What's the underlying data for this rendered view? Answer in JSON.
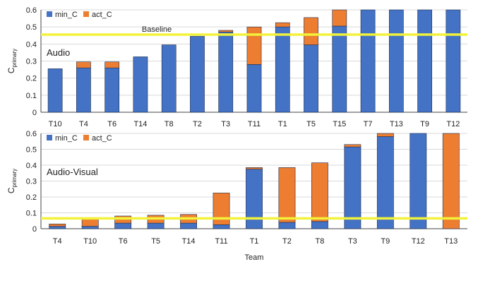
{
  "colors": {
    "min_C": "#4472C4",
    "act_C": "#ED7D31",
    "baseline": "#F2F23A",
    "bar_edge": "#1f2f4f"
  },
  "chart_data": [
    {
      "type": "bar",
      "stacked": true,
      "annotation": "Audio",
      "ylabel": "C",
      "ylabel_sub": "primary",
      "xlabel": "",
      "ylim": [
        0,
        0.6
      ],
      "yticks": [
        "0",
        "0.1",
        "0.2",
        "0.3",
        "0.4",
        "0.5",
        "0.6"
      ],
      "grid": true,
      "legend_position": "top-left",
      "baseline": {
        "label": "Baseline",
        "value": 0.455
      },
      "categories": [
        "T10",
        "T4",
        "T6",
        "T14",
        "T8",
        "T2",
        "T3",
        "T11",
        "T1",
        "T5",
        "T15",
        "T7",
        "T13",
        "T9",
        "T12"
      ],
      "series": [
        {
          "name": "min_C",
          "values": [
            0.255,
            0.26,
            0.26,
            0.325,
            0.395,
            0.445,
            0.47,
            0.28,
            0.5,
            0.395,
            0.505,
            0.6,
            0.6,
            0.6,
            0.6
          ]
        },
        {
          "name": "act_C",
          "values": [
            0.0,
            0.035,
            0.035,
            0.0,
            0.0,
            0.0,
            0.01,
            0.22,
            0.025,
            0.16,
            0.095,
            0.0,
            0.0,
            0.0,
            0.0
          ]
        }
      ]
    },
    {
      "type": "bar",
      "stacked": true,
      "annotation": "Audio-Visual",
      "ylabel": "C",
      "ylabel_sub": "primary",
      "xlabel": "Team",
      "ylim": [
        0,
        0.6
      ],
      "yticks": [
        "0",
        "0.1",
        "0.2",
        "0.3",
        "0.4",
        "0.5",
        "0.6"
      ],
      "grid": true,
      "legend_position": "top-left",
      "baseline": {
        "label": "",
        "value": 0.065
      },
      "categories": [
        "T4",
        "T10",
        "T6",
        "T5",
        "T14",
        "T11",
        "T1",
        "T2",
        "T8",
        "T3",
        "T9",
        "T12",
        "T13"
      ],
      "series": [
        {
          "name": "min_C",
          "values": [
            0.015,
            0.015,
            0.035,
            0.035,
            0.035,
            0.025,
            0.375,
            0.04,
            0.045,
            0.515,
            0.58,
            0.6,
            0.0
          ]
        },
        {
          "name": "act_C",
          "values": [
            0.015,
            0.045,
            0.045,
            0.05,
            0.055,
            0.2,
            0.01,
            0.345,
            0.37,
            0.015,
            0.02,
            0.0,
            0.6
          ]
        }
      ]
    }
  ]
}
